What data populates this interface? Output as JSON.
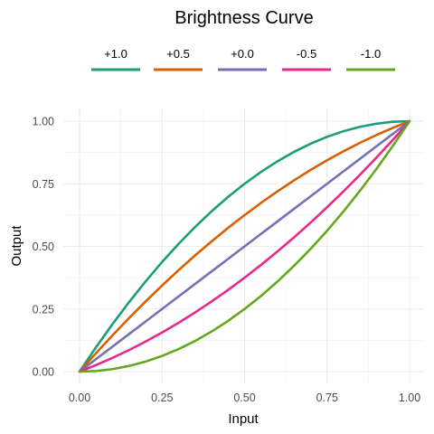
{
  "chart_data": {
    "type": "line",
    "title": "Brightness Curve",
    "xlabel": "Input",
    "ylabel": "Output",
    "xlim": [
      0,
      1
    ],
    "ylim": [
      0,
      1
    ],
    "x_ticks": [
      "0.00",
      "0.25",
      "0.50",
      "0.75",
      "1.00"
    ],
    "y_ticks": [
      "0.00",
      "0.25",
      "0.50",
      "0.75",
      "1.00"
    ],
    "grid": true,
    "legend_position": "top",
    "x": [
      0,
      0.05,
      0.1,
      0.15,
      0.2,
      0.25,
      0.3,
      0.35,
      0.4,
      0.45,
      0.5,
      0.55,
      0.6,
      0.65,
      0.7,
      0.75,
      0.8,
      0.85,
      0.9,
      0.95,
      1
    ],
    "series": [
      {
        "name": "+1.0",
        "color": "#1b9e77",
        "values": [
          0,
          0.0975,
          0.19,
          0.2775,
          0.36,
          0.4375,
          0.51,
          0.5775,
          0.64,
          0.6975,
          0.75,
          0.7975,
          0.84,
          0.8775,
          0.91,
          0.9375,
          0.96,
          0.9775,
          0.99,
          0.9975,
          1
        ]
      },
      {
        "name": "+0.5",
        "color": "#d95f02",
        "values": [
          0,
          0.0738,
          0.145,
          0.2138,
          0.28,
          0.3438,
          0.405,
          0.4638,
          0.52,
          0.5738,
          0.625,
          0.6738,
          0.72,
          0.7638,
          0.805,
          0.8438,
          0.88,
          0.9138,
          0.945,
          0.9738,
          1
        ]
      },
      {
        "name": "+0.0",
        "color": "#7570b3",
        "values": [
          0,
          0.05,
          0.1,
          0.15,
          0.2,
          0.25,
          0.3,
          0.35,
          0.4,
          0.45,
          0.5,
          0.55,
          0.6,
          0.65,
          0.7,
          0.75,
          0.8,
          0.85,
          0.9,
          0.95,
          1
        ]
      },
      {
        "name": "-0.5",
        "color": "#e7298a",
        "values": [
          0,
          0.0262,
          0.055,
          0.0862,
          0.12,
          0.1562,
          0.195,
          0.2362,
          0.28,
          0.3262,
          0.375,
          0.4262,
          0.48,
          0.5362,
          0.595,
          0.6562,
          0.72,
          0.7862,
          0.855,
          0.9262,
          1
        ]
      },
      {
        "name": "-1.0",
        "color": "#66a61e",
        "values": [
          0,
          0.0025,
          0.01,
          0.0225,
          0.04,
          0.0625,
          0.09,
          0.1225,
          0.16,
          0.2025,
          0.25,
          0.3025,
          0.36,
          0.4225,
          0.49,
          0.5625,
          0.64,
          0.7225,
          0.81,
          0.9025,
          1
        ]
      }
    ]
  }
}
